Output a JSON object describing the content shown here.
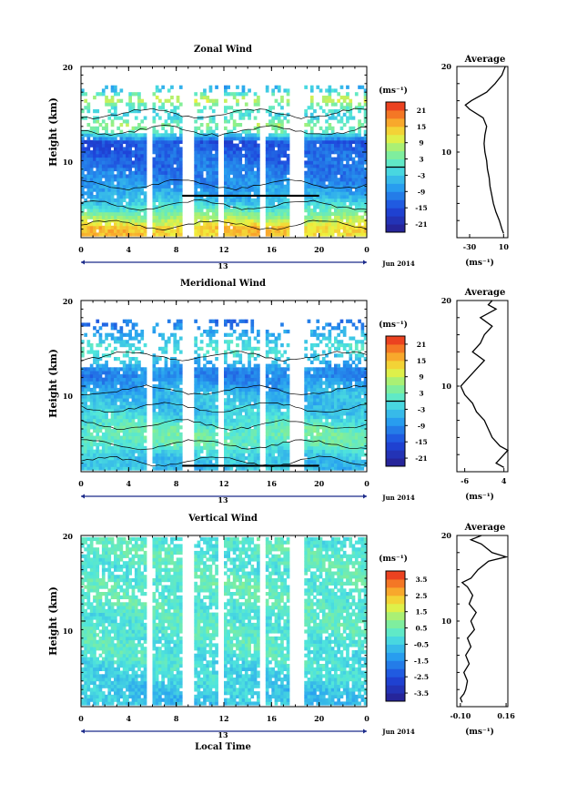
{
  "chart_data": [
    {
      "type": "heatmap",
      "title": "Zonal Wind",
      "ylabel": "Height (km)",
      "xlabel": "",
      "ylim": [
        0,
        20
      ],
      "xlim": [
        0,
        24
      ],
      "yticks": [
        "20",
        "10"
      ],
      "xticks": [
        "0",
        "4",
        "8",
        "12",
        "16",
        "20",
        "0"
      ],
      "day_label": "13",
      "month_label": "Jun 2014",
      "data_gaps_hours": [
        [
          5.5,
          6.0
        ],
        [
          8.5,
          9.3
        ],
        [
          11.5,
          12.0
        ],
        [
          14.8,
          15.3
        ],
        [
          17.3,
          18.6
        ]
      ],
      "colorbar": {
        "unit": "(ms⁻¹)",
        "min": -24,
        "max": 24,
        "ticks": [
          "21",
          "15",
          "9",
          "3",
          "-3",
          "-9",
          "-15",
          "-21"
        ],
        "zero_line": true
      },
      "field": {
        "levels_km": [
          1,
          2,
          3,
          4,
          5,
          6,
          7,
          8,
          9,
          10,
          11,
          12,
          13,
          14,
          15,
          16,
          17,
          18,
          19
        ],
        "values_ms": [
          14,
          8,
          2,
          -3,
          -6,
          -8,
          -10,
          -11,
          -12,
          -13,
          -14,
          0,
          6,
          -2,
          1,
          10,
          -3,
          -8,
          6
        ]
      },
      "average_profile": {
        "title": "Average",
        "xlabel": "(ms⁻¹)",
        "xticks": [
          "-30",
          "10"
        ],
        "xlim": [
          -45,
          15
        ],
        "yticks": [
          "20",
          "10"
        ],
        "ylim": [
          0,
          20
        ],
        "height_km": [
          0.5,
          1,
          2,
          3,
          4,
          5,
          6,
          7,
          8,
          9,
          10,
          11,
          12,
          13,
          14,
          15,
          15.5,
          16,
          17,
          18,
          18.5,
          19,
          19.5,
          20
        ],
        "value_ms": [
          10,
          8,
          5,
          1,
          -2,
          -4,
          -6,
          -7,
          -9,
          -10,
          -12,
          -13,
          -12,
          -10,
          -14,
          -30,
          -35,
          -28,
          -10,
          0,
          4,
          8,
          10,
          12
        ]
      }
    },
    {
      "type": "heatmap",
      "title": "Meridional Wind",
      "ylabel": "Height (km)",
      "xlabel": "",
      "ylim": [
        0,
        20
      ],
      "xlim": [
        0,
        24
      ],
      "yticks": [
        "20",
        "10"
      ],
      "xticks": [
        "0",
        "4",
        "8",
        "12",
        "16",
        "20",
        "0"
      ],
      "day_label": "13",
      "month_label": "Jun 2014",
      "data_gaps_hours": [
        [
          5.5,
          6.0
        ],
        [
          8.5,
          9.3
        ],
        [
          11.5,
          12.0
        ],
        [
          14.8,
          15.3
        ],
        [
          17.3,
          18.6
        ]
      ],
      "colorbar": {
        "unit": "(ms⁻¹)",
        "min": -24,
        "max": 24,
        "ticks": [
          "21",
          "15",
          "9",
          "3",
          "-3",
          "-9",
          "-15",
          "-21"
        ],
        "zero_line": true
      },
      "field": {
        "levels_km": [
          1,
          2,
          3,
          4,
          5,
          6,
          7,
          8,
          9,
          10,
          11,
          12,
          13,
          14,
          15,
          16,
          17,
          18,
          19
        ],
        "values_ms": [
          -4,
          -2,
          2,
          3,
          2,
          -1,
          -3,
          -4,
          -5,
          -7,
          -10,
          -8,
          -3,
          0,
          -2,
          -6,
          -10,
          -12,
          -6
        ]
      },
      "average_profile": {
        "title": "Average",
        "xlabel": "(ms⁻¹)",
        "xticks": [
          "-6",
          "4"
        ],
        "xlim": [
          -8,
          5
        ],
        "yticks": [
          "20",
          "10"
        ],
        "ylim": [
          0,
          20
        ],
        "height_km": [
          0.5,
          1,
          2,
          2.5,
          3,
          4,
          5,
          6,
          7,
          8,
          9,
          10,
          11,
          12,
          13,
          14,
          15,
          16,
          17,
          18,
          19,
          19.5,
          20
        ],
        "value_ms": [
          4,
          2,
          4,
          5,
          3,
          1,
          0,
          -1,
          -3,
          -4,
          -6,
          -7,
          -5,
          -3,
          -1,
          -4,
          -2,
          -1,
          1,
          -2,
          2,
          0,
          1
        ]
      }
    },
    {
      "type": "heatmap",
      "title": "Vertical Wind",
      "ylabel": "Height (km)",
      "xlabel": "Local Time",
      "ylim": [
        0,
        20
      ],
      "xlim": [
        0,
        24
      ],
      "yticks": [
        "20",
        "10"
      ],
      "xticks": [
        "0",
        "4",
        "8",
        "12",
        "16",
        "20",
        "0"
      ],
      "day_label": "13",
      "month_label": "Jun 2014",
      "data_gaps_hours": [
        [
          5.5,
          6.0
        ],
        [
          8.5,
          9.3
        ],
        [
          11.5,
          12.0
        ],
        [
          14.8,
          15.3
        ],
        [
          17.3,
          18.6
        ]
      ],
      "colorbar": {
        "unit": "(ms⁻¹)",
        "min": -4,
        "max": 4,
        "ticks": [
          "3.5",
          "2.5",
          "1.5",
          "0.5",
          "-0.5",
          "-1.5",
          "-2.5",
          "-3.5"
        ],
        "zero_line": false
      },
      "field": {
        "levels_km": [
          1,
          2,
          3,
          4,
          5,
          6,
          7,
          8,
          9,
          10,
          11,
          12,
          13,
          14,
          15,
          16,
          17,
          18,
          19
        ],
        "values_ms": [
          -0.6,
          -0.5,
          -0.3,
          -0.2,
          -0.1,
          0,
          0.1,
          0.1,
          0.2,
          0.1,
          0.1,
          0.2,
          0.2,
          0.3,
          0.2,
          0.1,
          0.2,
          0.2,
          0.1
        ]
      },
      "average_profile": {
        "title": "Average",
        "xlabel": "(ms⁻¹)",
        "xticks": [
          "-0.10",
          "0.16"
        ],
        "xlim": [
          -0.12,
          0.17
        ],
        "yticks": [
          "20",
          "10"
        ],
        "ylim": [
          0,
          20
        ],
        "height_km": [
          0.5,
          1,
          1.5,
          2,
          3,
          4,
          5,
          6,
          7,
          8,
          9,
          10,
          11,
          12,
          13,
          14,
          14.5,
          15,
          16,
          17,
          17.5,
          18,
          19,
          19.5,
          20
        ],
        "value_ms": [
          -0.09,
          -0.1,
          -0.08,
          -0.07,
          -0.06,
          -0.08,
          -0.05,
          -0.07,
          -0.04,
          -0.06,
          -0.02,
          -0.04,
          -0.01,
          -0.05,
          -0.03,
          -0.06,
          -0.09,
          -0.04,
          0.0,
          0.06,
          0.16,
          0.08,
          0.02,
          -0.04,
          0.02
        ]
      }
    }
  ]
}
